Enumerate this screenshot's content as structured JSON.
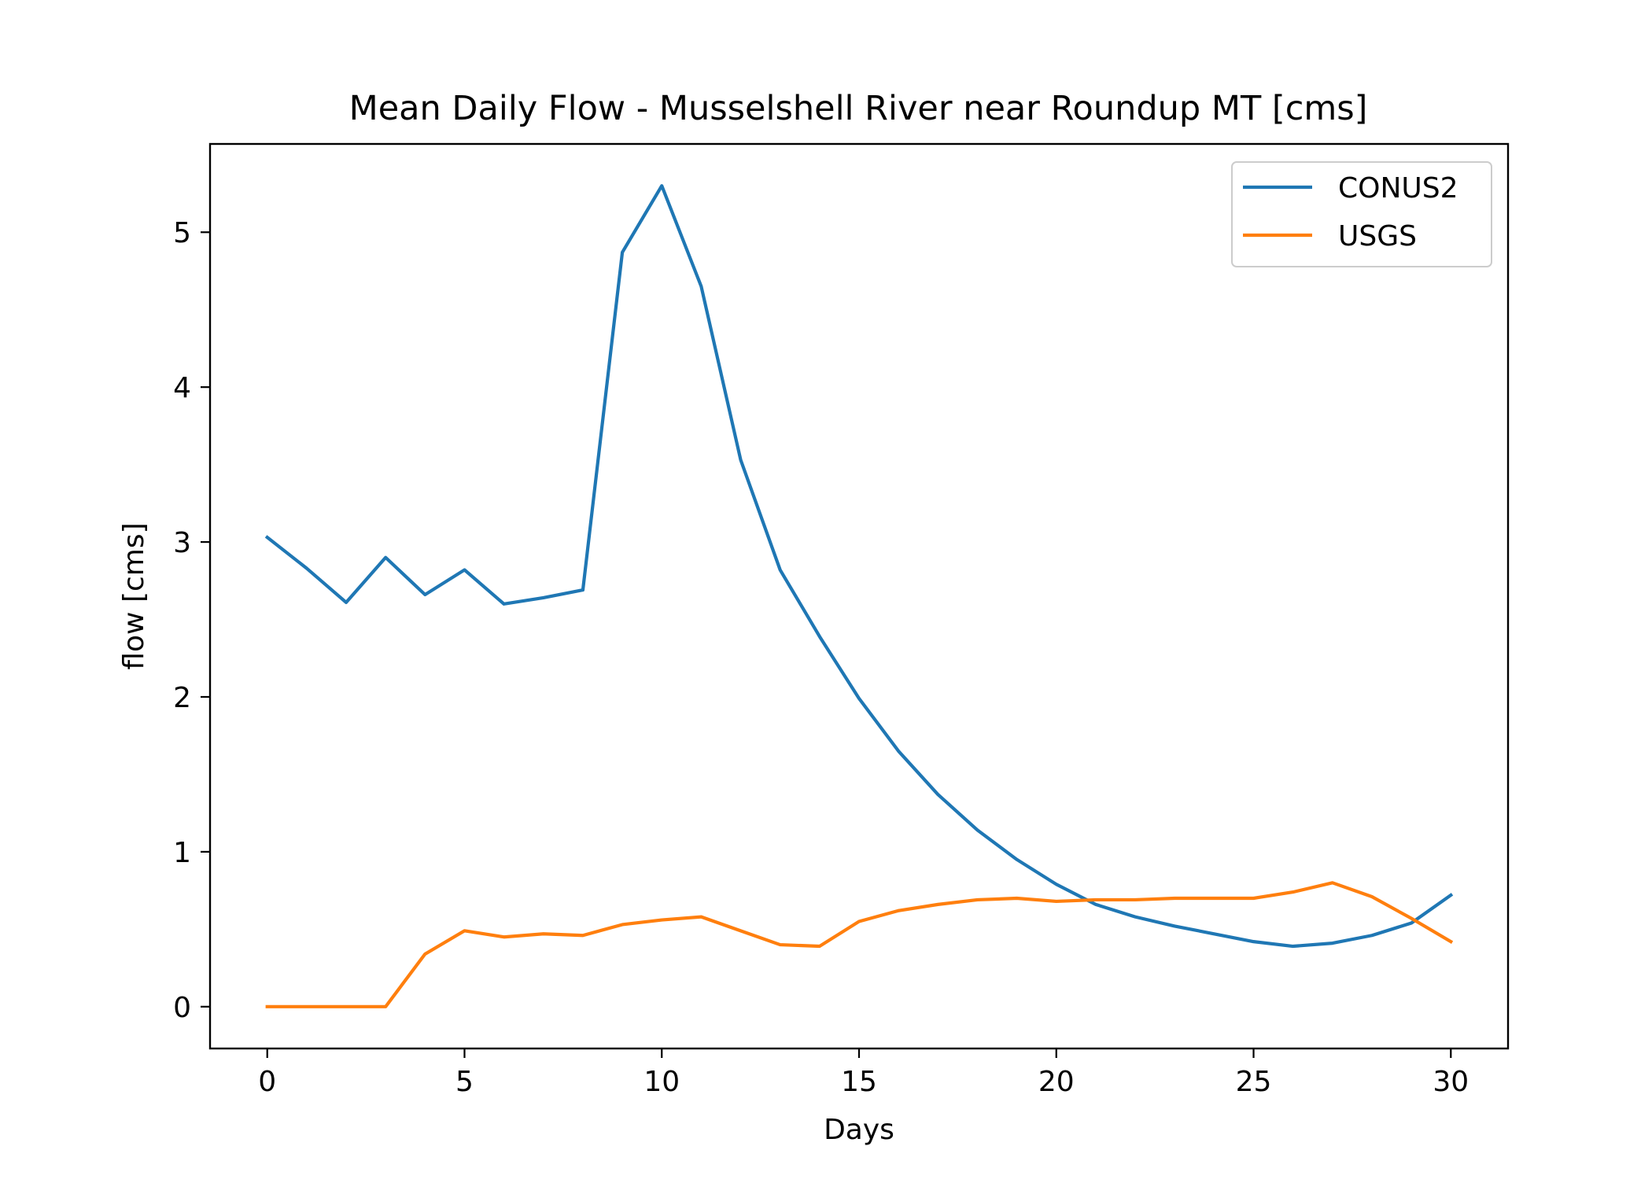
{
  "chart_data": {
    "type": "line",
    "title": "Mean Daily Flow - Musselshell River near Roundup MT [cms]",
    "xlabel": "Days",
    "ylabel": "flow [cms]",
    "xlim": [
      -1.45,
      31.45
    ],
    "ylim": [
      -0.27,
      5.57
    ],
    "xticks": [
      0,
      5,
      10,
      15,
      20,
      25,
      30
    ],
    "yticks": [
      0,
      1,
      2,
      3,
      4,
      5
    ],
    "grid": false,
    "legend_position": "top-right",
    "x": [
      0,
      1,
      2,
      3,
      4,
      5,
      6,
      7,
      8,
      9,
      10,
      11,
      12,
      13,
      14,
      15,
      16,
      17,
      18,
      19,
      20,
      21,
      22,
      23,
      24,
      25,
      26,
      27,
      28,
      29,
      30
    ],
    "series": [
      {
        "name": "CONUS2",
        "color": "#1f77b4",
        "values": [
          3.03,
          2.83,
          2.61,
          2.9,
          2.66,
          2.82,
          2.6,
          2.64,
          2.69,
          4.87,
          5.3,
          4.65,
          3.53,
          2.82,
          2.39,
          1.99,
          1.65,
          1.37,
          1.14,
          0.95,
          0.79,
          0.66,
          0.58,
          0.52,
          0.47,
          0.42,
          0.39,
          0.41,
          0.46,
          0.54,
          0.72
        ]
      },
      {
        "name": "USGS",
        "color": "#ff7f0e",
        "values": [
          0,
          0,
          0,
          0,
          0.34,
          0.49,
          0.45,
          0.47,
          0.46,
          0.53,
          0.56,
          0.58,
          0.49,
          0.4,
          0.39,
          0.55,
          0.62,
          0.66,
          0.69,
          0.7,
          0.68,
          0.69,
          0.69,
          0.7,
          0.7,
          0.7,
          0.74,
          0.8,
          0.71,
          0.57,
          0.42
        ]
      }
    ]
  }
}
